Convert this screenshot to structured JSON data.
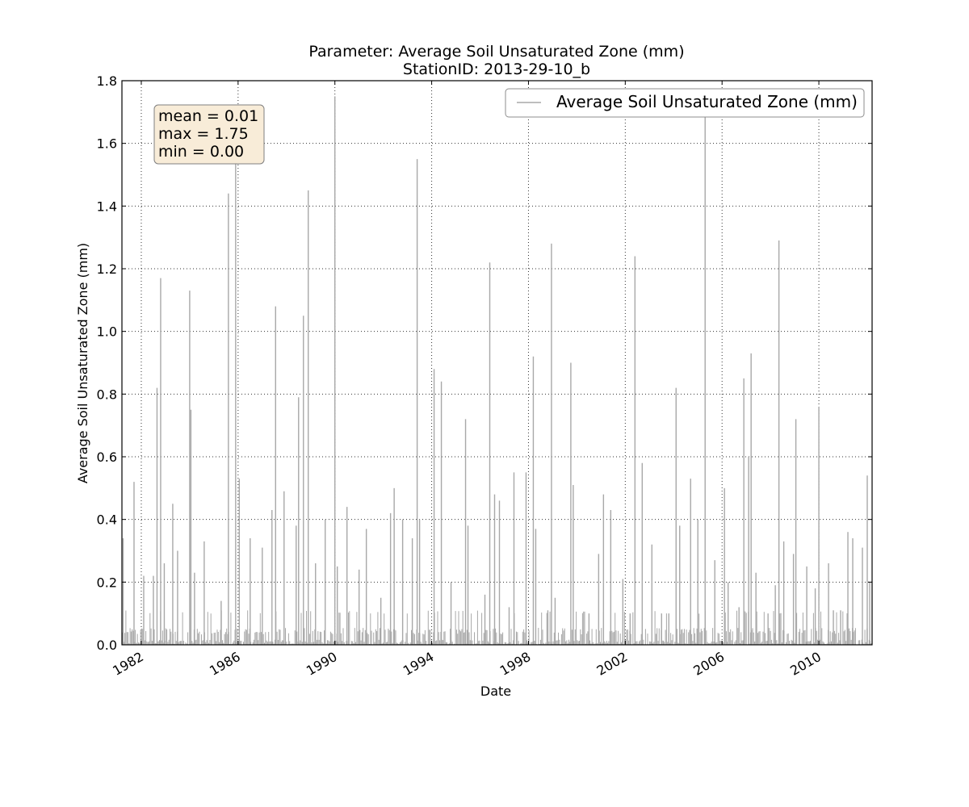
{
  "colors": {
    "series": "#a8a8a8",
    "stats_box_fill": "#f8ecd8",
    "stats_box_edge": "#7f7f7f",
    "legend_edge": "#8c8c8c"
  },
  "chart_data": {
    "type": "line",
    "title": "Parameter: Average Soil Unsaturated Zone (mm)",
    "subtitle": "StationID: 2013-29-10_b",
    "xlabel": "Date",
    "ylabel": "Average Soil Unsaturated Zone (mm)",
    "xlim": [
      1981.0,
      2012.0
    ],
    "ylim": [
      0.0,
      1.8
    ],
    "yticks": [
      "0.0",
      "0.2",
      "0.4",
      "0.6",
      "0.8",
      "1.0",
      "1.2",
      "1.4",
      "1.6",
      "1.8"
    ],
    "xticks": [
      "1982",
      "1986",
      "1990",
      "1994",
      "1998",
      "2002",
      "2006",
      "2010"
    ],
    "grid": true,
    "legend_placement": "top-right",
    "stats": {
      "mean": "mean = 0.01",
      "max": "max = 1.75",
      "min": "min = 0.00"
    },
    "series": [
      {
        "name": "Average Soil Unsaturated Zone (mm)",
        "color": "#a8a8a8",
        "peaks": [
          [
            1981.05,
            0.34
          ],
          [
            1981.5,
            0.52
          ],
          [
            1981.9,
            0.22
          ],
          [
            1982.3,
            0.22
          ],
          [
            1982.45,
            0.82
          ],
          [
            1982.6,
            1.17
          ],
          [
            1982.75,
            0.26
          ],
          [
            1983.1,
            0.45
          ],
          [
            1983.3,
            0.3
          ],
          [
            1983.8,
            1.13
          ],
          [
            1983.85,
            0.75
          ],
          [
            1984.0,
            0.23
          ],
          [
            1984.4,
            0.33
          ],
          [
            1985.1,
            0.14
          ],
          [
            1985.4,
            1.44
          ],
          [
            1985.7,
            1.62
          ],
          [
            1985.85,
            0.53
          ],
          [
            1986.3,
            0.34
          ],
          [
            1986.8,
            0.31
          ],
          [
            1987.2,
            0.43
          ],
          [
            1987.35,
            1.08
          ],
          [
            1987.7,
            0.49
          ],
          [
            1988.2,
            0.38
          ],
          [
            1988.3,
            0.79
          ],
          [
            1988.5,
            1.05
          ],
          [
            1988.7,
            1.45
          ],
          [
            1989.0,
            0.26
          ],
          [
            1989.4,
            0.4
          ],
          [
            1989.8,
            1.75
          ],
          [
            1989.9,
            0.25
          ],
          [
            1990.3,
            0.44
          ],
          [
            1990.8,
            0.24
          ],
          [
            1991.1,
            0.37
          ],
          [
            1991.7,
            0.15
          ],
          [
            1992.1,
            0.42
          ],
          [
            1992.25,
            0.5
          ],
          [
            1992.6,
            0.4
          ],
          [
            1993.0,
            0.34
          ],
          [
            1993.2,
            1.55
          ],
          [
            1993.3,
            0.4
          ],
          [
            1993.9,
            0.88
          ],
          [
            1994.2,
            0.84
          ],
          [
            1994.6,
            0.2
          ],
          [
            1995.2,
            0.72
          ],
          [
            1995.3,
            0.38
          ],
          [
            1996.0,
            0.16
          ],
          [
            1996.2,
            1.22
          ],
          [
            1996.4,
            0.48
          ],
          [
            1996.6,
            0.46
          ],
          [
            1997.0,
            0.12
          ],
          [
            1997.2,
            0.55
          ],
          [
            1997.7,
            0.55
          ],
          [
            1998.0,
            0.92
          ],
          [
            1998.1,
            0.37
          ],
          [
            1998.6,
            0.11
          ],
          [
            1998.75,
            1.28
          ],
          [
            1998.9,
            0.15
          ],
          [
            1999.55,
            0.9
          ],
          [
            1999.65,
            0.51
          ],
          [
            2000.3,
            0.1
          ],
          [
            2000.7,
            0.29
          ],
          [
            2000.9,
            0.48
          ],
          [
            2001.2,
            0.43
          ],
          [
            2001.7,
            0.21
          ],
          [
            2002.0,
            0.1
          ],
          [
            2002.2,
            1.24
          ],
          [
            2002.5,
            0.58
          ],
          [
            2002.9,
            0.32
          ],
          [
            2003.3,
            0.1
          ],
          [
            2003.6,
            0.1
          ],
          [
            2003.9,
            0.82
          ],
          [
            2004.05,
            0.38
          ],
          [
            2004.5,
            0.53
          ],
          [
            2004.8,
            0.4
          ],
          [
            2005.1,
            1.72
          ],
          [
            2005.5,
            0.27
          ],
          [
            2005.9,
            0.5
          ],
          [
            2006.05,
            0.2
          ],
          [
            2006.5,
            0.12
          ],
          [
            2006.7,
            0.85
          ],
          [
            2006.9,
            0.6
          ],
          [
            2007.0,
            0.93
          ],
          [
            2007.2,
            0.23
          ],
          [
            2007.7,
            0.1
          ],
          [
            2008.0,
            0.19
          ],
          [
            2008.15,
            1.29
          ],
          [
            2008.35,
            0.33
          ],
          [
            2008.75,
            0.29
          ],
          [
            2008.85,
            0.72
          ],
          [
            2009.3,
            0.25
          ],
          [
            2009.65,
            0.18
          ],
          [
            2009.8,
            0.76
          ],
          [
            2010.2,
            0.26
          ],
          [
            2010.4,
            0.11
          ],
          [
            2010.7,
            0.11
          ],
          [
            2011.0,
            0.36
          ],
          [
            2011.2,
            0.34
          ],
          [
            2011.6,
            0.31
          ],
          [
            2011.8,
            0.54
          ],
          [
            2011.9,
            0.2
          ]
        ]
      }
    ]
  }
}
